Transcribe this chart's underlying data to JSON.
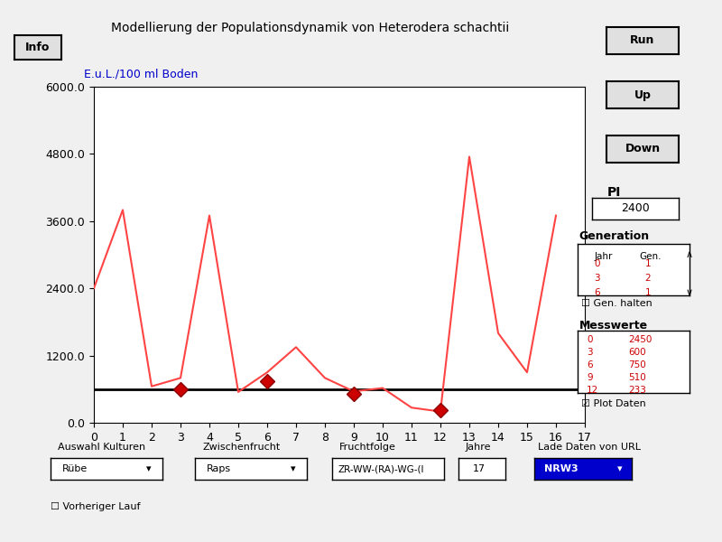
{
  "title": "Modellierung der Populationsdynamik von Heterodera schachtii",
  "ylabel": "E.u.L./100 ml Boden",
  "xlim": [
    0,
    17
  ],
  "ylim": [
    0,
    6000
  ],
  "yticks": [
    0.0,
    1200.0,
    2400.0,
    3600.0,
    4800.0,
    6000.0
  ],
  "xticks": [
    0,
    1,
    2,
    3,
    4,
    5,
    6,
    7,
    8,
    9,
    10,
    11,
    12,
    13,
    14,
    15,
    16,
    17
  ],
  "line_x": [
    0,
    1,
    2,
    3,
    4,
    5,
    6,
    7,
    8,
    9,
    10,
    11,
    12,
    13,
    14,
    15,
    16
  ],
  "line_y": [
    2400,
    3800,
    650,
    800,
    3700,
    550,
    900,
    1350,
    800,
    560,
    620,
    270,
    200,
    4750,
    1600,
    900,
    3700
  ],
  "line_color": "#FF4444",
  "hline_y": 600,
  "hline_color": "#000000",
  "measure_points_x": [
    3,
    6,
    9,
    12
  ],
  "measure_points_y": [
    600,
    750,
    510,
    233
  ],
  "marker_color": "#8B0000",
  "marker_face": "#CC0000",
  "bg_color": "#F0F0F0",
  "plot_bg": "#FFFFFF",
  "pi_value": 2400,
  "auswahl_kulturen": "Rübe",
  "zwischenfrucht": "Raps",
  "fruchtfolge": "ZR-WW-(RA)-WG-(l",
  "jahre": "17",
  "lade_daten": "NRW3",
  "generation_data": [
    [
      0,
      1
    ],
    [
      3,
      2
    ],
    [
      6,
      1
    ]
  ],
  "messwerte_data": [
    [
      0,
      2450
    ],
    [
      3,
      600
    ],
    [
      6,
      750
    ],
    [
      9,
      510
    ],
    [
      12,
      233
    ]
  ]
}
